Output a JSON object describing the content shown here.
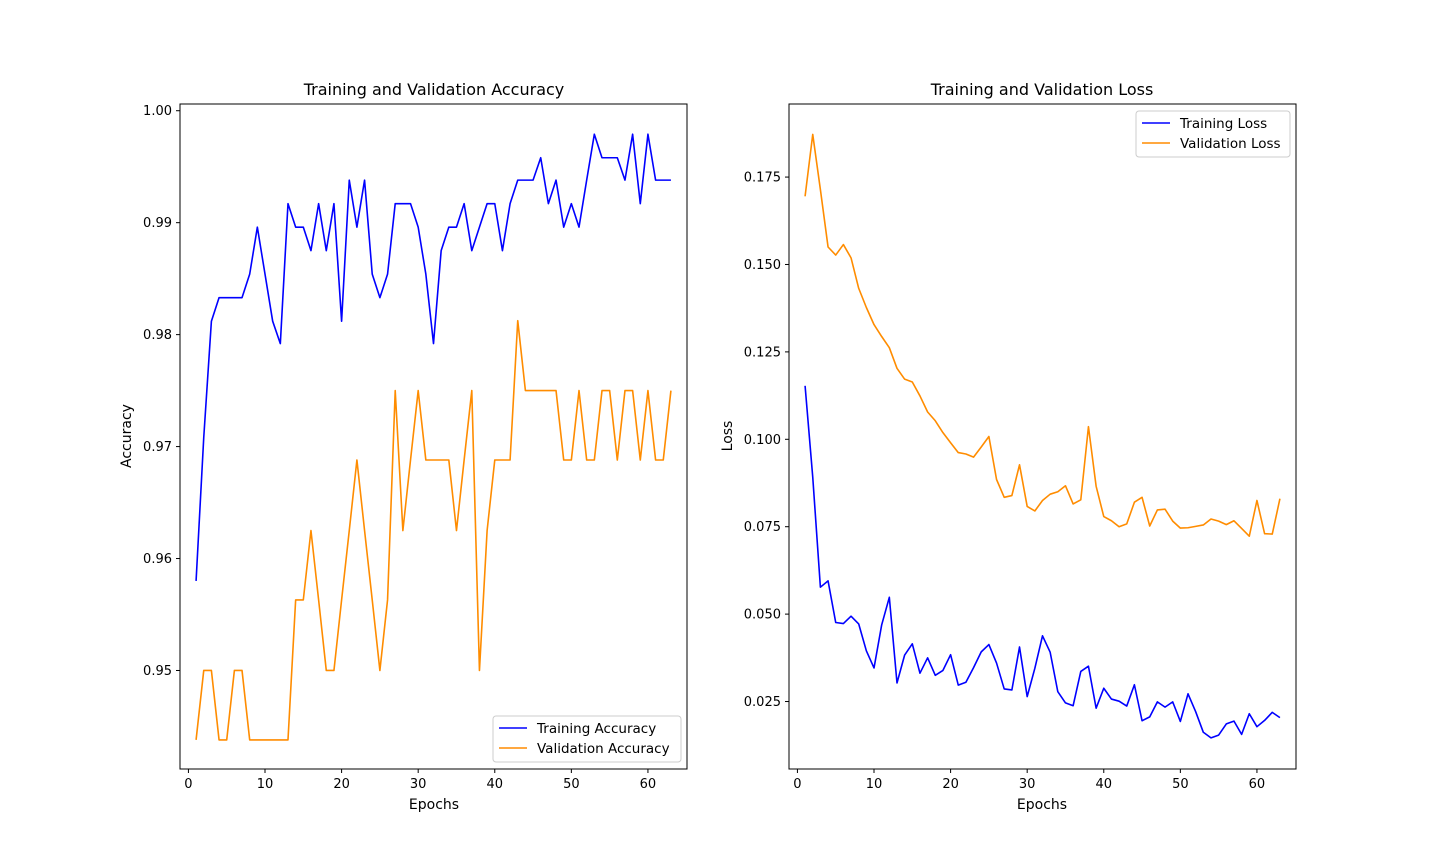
{
  "colors": {
    "training": "#0000ff",
    "validation": "#ff8c00"
  },
  "chart_data": [
    {
      "type": "line",
      "title": "Training and Validation Accuracy",
      "xlabel": "Epochs",
      "ylabel": "Accuracy",
      "xlim": [
        -1.1,
        65.1
      ],
      "ylim": [
        0.9412,
        1.0006
      ],
      "x_ticks": [
        0,
        10,
        20,
        30,
        40,
        50,
        60
      ],
      "x_tick_labels": [
        "0",
        "10",
        "20",
        "30",
        "40",
        "50",
        "60"
      ],
      "y_ticks": [
        0.95,
        0.96,
        0.97,
        0.98,
        0.99,
        1.0
      ],
      "y_tick_labels": [
        "0.95",
        "0.96",
        "0.97",
        "0.98",
        "0.99",
        "1.00"
      ],
      "legend_position": "lower right",
      "x": [
        1,
        2,
        3,
        4,
        5,
        6,
        7,
        8,
        9,
        10,
        11,
        12,
        13,
        14,
        15,
        16,
        17,
        18,
        19,
        20,
        21,
        22,
        23,
        24,
        25,
        26,
        27,
        28,
        29,
        30,
        31,
        32,
        33,
        34,
        35,
        36,
        37,
        38,
        39,
        40,
        41,
        42,
        43,
        44,
        45,
        46,
        47,
        48,
        49,
        50,
        51,
        52,
        53,
        54,
        55,
        56,
        57,
        58,
        59,
        60,
        61,
        62,
        63
      ],
      "series": [
        {
          "name": "Training Accuracy",
          "color": "#0000ff",
          "values": [
            0.958,
            0.9708,
            0.9812,
            0.9833,
            0.9833,
            0.9833,
            0.9833,
            0.9854,
            0.9896,
            0.9854,
            0.9812,
            0.9792,
            0.9917,
            0.9896,
            0.9896,
            0.9875,
            0.9917,
            0.9875,
            0.9917,
            0.9812,
            0.9938,
            0.9896,
            0.9938,
            0.9854,
            0.9833,
            0.9854,
            0.9917,
            0.9917,
            0.9917,
            0.9896,
            0.9854,
            0.9792,
            0.9875,
            0.9896,
            0.9896,
            0.9917,
            0.9875,
            0.9896,
            0.9917,
            0.9917,
            0.9875,
            0.9917,
            0.9938,
            0.9938,
            0.9938,
            0.9958,
            0.9917,
            0.9938,
            0.9896,
            0.9917,
            0.9896,
            0.9938,
            0.9979,
            0.9958,
            0.9958,
            0.9958,
            0.9938,
            0.9979,
            0.9917,
            0.9979,
            0.9938,
            0.9938,
            0.9938
          ]
        },
        {
          "name": "Validation Accuracy",
          "color": "#ff8c00",
          "values": [
            0.9438,
            0.95,
            0.95,
            0.9438,
            0.9438,
            0.95,
            0.95,
            0.9438,
            0.9438,
            0.9438,
            0.9438,
            0.9438,
            0.9438,
            0.9563,
            0.9563,
            0.9625,
            0.9563,
            0.95,
            0.95,
            0.9563,
            0.9625,
            0.9688,
            0.9625,
            0.9563,
            0.95,
            0.9563,
            0.975,
            0.9625,
            0.9688,
            0.975,
            0.9688,
            0.9688,
            0.9688,
            0.9688,
            0.9625,
            0.9688,
            0.975,
            0.95,
            0.9625,
            0.9688,
            0.9688,
            0.9688,
            0.98125,
            0.975,
            0.975,
            0.975,
            0.975,
            0.975,
            0.9688,
            0.9688,
            0.975,
            0.9688,
            0.9688,
            0.975,
            0.975,
            0.9688,
            0.975,
            0.975,
            0.9688,
            0.975,
            0.9688,
            0.9688,
            0.975
          ]
        }
      ]
    },
    {
      "type": "line",
      "title": "Training and Validation Loss",
      "xlabel": "Epochs",
      "ylabel": "Loss",
      "xlim": [
        -1.1,
        65.1
      ],
      "ylim": [
        0.0057,
        0.1959
      ],
      "x_ticks": [
        0,
        10,
        20,
        30,
        40,
        50,
        60
      ],
      "x_tick_labels": [
        "0",
        "10",
        "20",
        "30",
        "40",
        "50",
        "60"
      ],
      "y_ticks": [
        0.025,
        0.05,
        0.075,
        0.1,
        0.125,
        0.15,
        0.175
      ],
      "y_tick_labels": [
        "0.025",
        "0.050",
        "0.075",
        "0.100",
        "0.125",
        "0.150",
        "0.175"
      ],
      "legend_position": "upper right",
      "x": [
        1,
        2,
        3,
        4,
        5,
        6,
        7,
        8,
        9,
        10,
        11,
        12,
        13,
        14,
        15,
        16,
        17,
        18,
        19,
        20,
        21,
        22,
        23,
        24,
        25,
        26,
        27,
        28,
        29,
        30,
        31,
        32,
        33,
        34,
        35,
        36,
        37,
        38,
        39,
        40,
        41,
        42,
        43,
        44,
        45,
        46,
        47,
        48,
        49,
        50,
        51,
        52,
        53,
        54,
        55,
        56,
        57,
        58,
        59,
        60,
        61,
        62,
        63
      ],
      "series": [
        {
          "name": "Training Loss",
          "color": "#0000ff",
          "values": [
            0.1153,
            0.0892,
            0.0577,
            0.0595,
            0.0476,
            0.0473,
            0.0494,
            0.0472,
            0.0395,
            0.0346,
            0.0469,
            0.0548,
            0.0303,
            0.0383,
            0.0415,
            0.0331,
            0.0375,
            0.0325,
            0.0339,
            0.0384,
            0.0297,
            0.0305,
            0.0347,
            0.0392,
            0.0413,
            0.036,
            0.0286,
            0.0283,
            0.0406,
            0.0264,
            0.0345,
            0.0438,
            0.0391,
            0.0278,
            0.0246,
            0.0238,
            0.0336,
            0.0351,
            0.0231,
            0.0288,
            0.0257,
            0.0251,
            0.0237,
            0.0298,
            0.0195,
            0.0206,
            0.0249,
            0.0234,
            0.0249,
            0.0193,
            0.0272,
            0.0221,
            0.0162,
            0.0146,
            0.0154,
            0.0186,
            0.0194,
            0.0156,
            0.0215,
            0.0178,
            0.0196,
            0.0219,
            0.0204
          ]
        },
        {
          "name": "Validation Loss",
          "color": "#ff8c00",
          "values": [
            0.1695,
            0.1872,
            0.1714,
            0.155,
            0.1527,
            0.1557,
            0.1519,
            0.1432,
            0.1377,
            0.1328,
            0.1294,
            0.1262,
            0.1203,
            0.1172,
            0.1164,
            0.1124,
            0.1078,
            0.1053,
            0.1019,
            0.099,
            0.0962,
            0.0958,
            0.0949,
            0.0978,
            0.1008,
            0.0885,
            0.0834,
            0.0839,
            0.0927,
            0.0808,
            0.0795,
            0.0825,
            0.0843,
            0.085,
            0.0867,
            0.0815,
            0.0827,
            0.1036,
            0.0866,
            0.0779,
            0.0767,
            0.075,
            0.0758,
            0.082,
            0.0834,
            0.0752,
            0.0798,
            0.08,
            0.0766,
            0.0746,
            0.0747,
            0.0751,
            0.0755,
            0.0772,
            0.0766,
            0.0756,
            0.0767,
            0.0745,
            0.0723,
            0.0825,
            0.073,
            0.0729,
            0.083
          ]
        }
      ]
    }
  ]
}
